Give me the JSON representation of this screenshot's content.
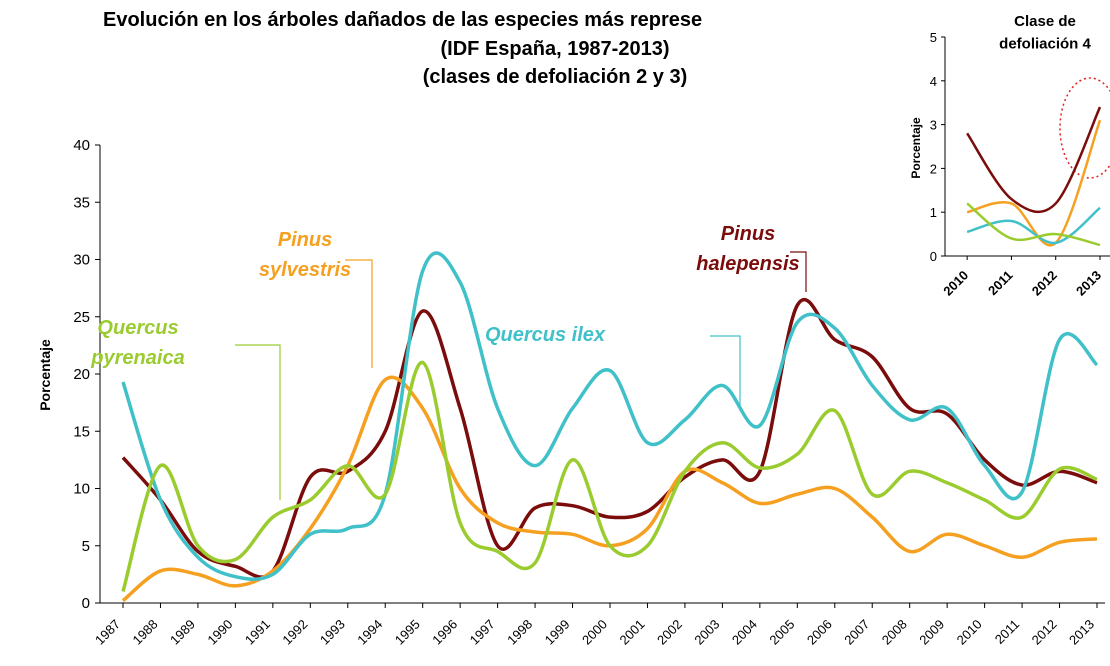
{
  "chart_data": [
    {
      "type": "line",
      "title": "Evolución en los árboles dañados de las especies más represe",
      "subtitle": [
        "(IDF España, 1987-2013)",
        "(clases de defoliación 2 y 3)"
      ],
      "y_label": "Porcentaje",
      "categories": [
        "1987",
        "1988",
        "1989",
        "1990",
        "1991",
        "1992",
        "1993",
        "1994",
        "1995",
        "1996",
        "1997",
        "1998",
        "1999",
        "2000",
        "2001",
        "2002",
        "2003",
        "2004",
        "2005",
        "2006",
        "2007",
        "2008",
        "2009",
        "2010",
        "2011",
        "2012",
        "2013"
      ],
      "ylim": [
        0,
        40
      ],
      "yticks": [
        0,
        5,
        10,
        15,
        20,
        25,
        30,
        35,
        40
      ],
      "series": [
        {
          "name": "Pinus\nhalepensis",
          "color": "#7b0c0c",
          "values": [
            12.7,
            9,
            4.5,
            3.2,
            2.8,
            11,
            11.5,
            15,
            25.5,
            17,
            5,
            8.3,
            8.5,
            7.5,
            8,
            11,
            12.5,
            11.5,
            26,
            23,
            21.5,
            17,
            16.5,
            12.5,
            10.3,
            11.5,
            10.5
          ]
        },
        {
          "name": "Pinus\nsylvestris",
          "color": "#f5a020",
          "values": [
            0.2,
            2.8,
            2.5,
            1.5,
            2.8,
            6.5,
            12,
            19.5,
            17,
            10,
            7,
            6.2,
            6,
            5,
            6.5,
            11.5,
            10.5,
            8.7,
            9.5,
            10,
            7.5,
            4.5,
            6,
            5,
            4,
            5.3,
            5.6
          ]
        },
        {
          "name": "Quercus ilex",
          "color": "#40c0c8",
          "values": [
            19.3,
            9,
            4,
            2.3,
            2.5,
            6,
            6.5,
            9.5,
            29,
            28,
            17,
            12,
            17,
            20.3,
            14,
            16,
            19,
            15.5,
            24.5,
            24,
            19,
            16,
            17,
            12,
            9.7,
            23,
            20.8
          ]
        },
        {
          "name": "Quercus\npyrenaica",
          "color": "#9acc30",
          "values": [
            1,
            12,
            5,
            3.8,
            7.5,
            9,
            12,
            9.5,
            21,
            7,
            4.5,
            3.5,
            12.5,
            5,
            5,
            11.5,
            14,
            11.8,
            13,
            16.8,
            9.5,
            11.5,
            10.5,
            9,
            7.5,
            11.7,
            10.8
          ]
        }
      ]
    },
    {
      "type": "line",
      "title": "Clase de\ndefoliación 4",
      "y_label": "Porcentaje",
      "x": [
        2010,
        2011,
        2012,
        2013
      ],
      "xlim": [
        2009.5,
        2013
      ],
      "ylim": [
        0,
        5
      ],
      "yticks": [
        0,
        1,
        2,
        3,
        4,
        5
      ],
      "series": [
        {
          "color": "#7b0c0c",
          "values": [
            2.8,
            1.3,
            1.2,
            3.4
          ]
        },
        {
          "color": "#f5a020",
          "values": [
            1.0,
            1.2,
            0.3,
            3.1
          ]
        },
        {
          "color": "#40c0c8",
          "values": [
            0.55,
            0.8,
            0.3,
            1.1
          ]
        },
        {
          "color": "#9acc30",
          "values": [
            1.2,
            0.4,
            0.5,
            0.25
          ]
        }
      ]
    }
  ]
}
